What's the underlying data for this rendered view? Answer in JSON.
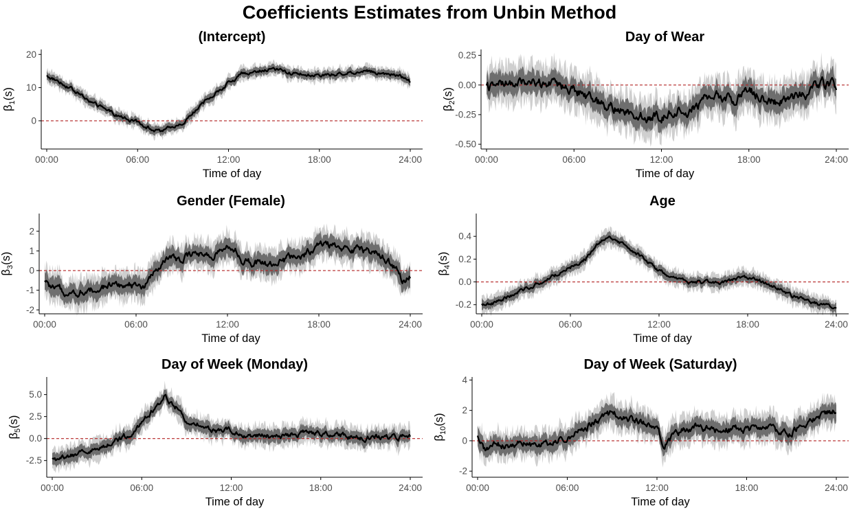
{
  "title": "Coefficients Estimates from Unbin Method",
  "colors": {
    "line": "#000000",
    "band_inner": "#6e6e6e",
    "band_outer": "#cfcfcf",
    "zero_line": "#b22222",
    "axis": "#000000"
  },
  "chart_data": [
    {
      "type": "line",
      "title": "(Intercept)",
      "ylabel": "β1(s)",
      "ylabel_base": "β",
      "ylabel_sub": "1",
      "ylabel_tail": "(s)",
      "xlabel": "Time of day",
      "x_ticks": [
        "00:00",
        "06:00",
        "12:00",
        "18:00",
        "24:00"
      ],
      "xlim": [
        0,
        24
      ],
      "y_ticks": [
        "0",
        "10",
        "20"
      ],
      "y_tick_values": [
        0,
        10,
        20
      ],
      "ylim": [
        -8.5,
        21.5
      ],
      "reference_line": 0,
      "noise": {
        "ci_inner": 1.2,
        "ci_outer": 2.0,
        "wiggle": 0.5
      },
      "series": [
        {
          "name": "",
          "x": [
            0,
            1,
            2,
            3,
            4,
            5,
            6,
            6.5,
            7,
            7.5,
            8,
            9,
            10,
            11,
            12,
            12.5,
            13,
            14,
            15,
            16,
            17,
            18,
            19,
            20,
            21,
            22,
            23,
            24
          ],
          "y": [
            13.5,
            11.5,
            8.5,
            5.5,
            3,
            1,
            -0.5,
            -1.5,
            -2.5,
            -3.5,
            -2.5,
            -0.5,
            4,
            8,
            11.5,
            12.5,
            14.5,
            15,
            15.5,
            14.5,
            14,
            13.5,
            14,
            14.5,
            15,
            14.5,
            14,
            12
          ]
        }
      ]
    },
    {
      "type": "line",
      "title": "Day of Wear",
      "ylabel": "β2(s)",
      "ylabel_base": "β",
      "ylabel_sub": "2",
      "ylabel_tail": "(s)",
      "xlabel": "Time of day",
      "x_ticks": [
        "00:00",
        "06:00",
        "12:00",
        "18:00",
        "24:00"
      ],
      "xlim": [
        0,
        24
      ],
      "y_ticks": [
        "-0.50",
        "-0.25",
        "0.00",
        "0.25"
      ],
      "y_tick_values": [
        -0.5,
        -0.25,
        0,
        0.25
      ],
      "ylim": [
        -0.54,
        0.3
      ],
      "reference_line": 0,
      "noise": {
        "ci_inner": 0.09,
        "ci_outer": 0.16,
        "wiggle": 0.04
      },
      "series": [
        {
          "name": "",
          "x": [
            0,
            1,
            2,
            3,
            4,
            5,
            6,
            7,
            8,
            9,
            10,
            11,
            12,
            13,
            14,
            15,
            16,
            17,
            18,
            19,
            20,
            21,
            22,
            23,
            24
          ],
          "y": [
            -0.02,
            0.0,
            0.02,
            0.03,
            0.01,
            -0.02,
            -0.04,
            -0.1,
            -0.18,
            -0.2,
            -0.22,
            -0.28,
            -0.27,
            -0.2,
            -0.22,
            -0.12,
            -0.1,
            -0.12,
            -0.05,
            -0.1,
            -0.15,
            -0.12,
            -0.08,
            0.03,
            -0.02
          ]
        }
      ]
    },
    {
      "type": "line",
      "title": "Gender (Female)",
      "ylabel": "β3(s)",
      "ylabel_base": "β",
      "ylabel_sub": "3",
      "ylabel_tail": "(s)",
      "xlabel": "Time of day",
      "x_ticks": [
        "00:00",
        "06:00",
        "12:00",
        "18:00",
        "24:00"
      ],
      "xlim": [
        0,
        24
      ],
      "y_ticks": [
        "-2",
        "-1",
        "0",
        "1",
        "2"
      ],
      "y_tick_values": [
        -2,
        -1,
        0,
        1,
        2
      ],
      "ylim": [
        -2.2,
        2.9
      ],
      "reference_line": 0,
      "noise": {
        "ci_inner": 0.45,
        "ci_outer": 0.75,
        "wiggle": 0.18
      },
      "series": [
        {
          "name": "",
          "x": [
            0,
            0.5,
            1,
            2,
            3,
            4,
            5,
            6,
            6.5,
            7,
            7.5,
            8,
            9,
            10,
            11,
            12,
            12.5,
            13,
            14,
            15,
            16,
            17,
            18,
            18.5,
            19,
            20,
            21,
            22,
            23,
            23.5,
            24
          ],
          "y": [
            -0.6,
            -0.9,
            -1.0,
            -1.1,
            -1.0,
            -0.8,
            -0.7,
            -0.8,
            -0.9,
            -0.4,
            0.2,
            0.6,
            0.6,
            0.8,
            0.8,
            1.1,
            1.0,
            0.4,
            0.4,
            0.3,
            0.6,
            0.8,
            1.2,
            1.4,
            1.2,
            1.1,
            1.0,
            0.8,
            0.2,
            -0.6,
            -0.4
          ]
        }
      ]
    },
    {
      "type": "line",
      "title": "Age",
      "ylabel": "β4(s)",
      "ylabel_base": "β",
      "ylabel_sub": "4",
      "ylabel_tail": "(s)",
      "xlabel": "Time of day",
      "x_ticks": [
        "00:00",
        "06:00",
        "12:00",
        "18:00",
        "24:00"
      ],
      "xlim": [
        0,
        24
      ],
      "y_ticks": [
        "-0.2",
        "0.0",
        "0.2",
        "0.4"
      ],
      "y_tick_values": [
        -0.2,
        0,
        0.2,
        0.4
      ],
      "ylim": [
        -0.28,
        0.6
      ],
      "reference_line": 0,
      "noise": {
        "ci_inner": 0.04,
        "ci_outer": 0.07,
        "wiggle": 0.015
      },
      "series": [
        {
          "name": "",
          "x": [
            0,
            1,
            2,
            3,
            4,
            5,
            6,
            7,
            8,
            8.5,
            9,
            10,
            11,
            12,
            13,
            14,
            15,
            16,
            17,
            18,
            19,
            20,
            21,
            22,
            23,
            24
          ],
          "y": [
            -0.2,
            -0.18,
            -0.12,
            -0.06,
            0.0,
            0.06,
            0.13,
            0.2,
            0.35,
            0.4,
            0.38,
            0.3,
            0.2,
            0.1,
            0.03,
            0.0,
            0.0,
            -0.01,
            0.02,
            0.04,
            0.0,
            -0.05,
            -0.12,
            -0.17,
            -0.2,
            -0.22
          ]
        }
      ]
    },
    {
      "type": "line",
      "title": "Day of Week (Monday)",
      "ylabel": "β5(s)",
      "ylabel_base": "β",
      "ylabel_sub": "5",
      "ylabel_tail": "(s)",
      "xlabel": "Time of day",
      "x_ticks": [
        "00:00",
        "06:00",
        "12:00",
        "18:00",
        "24:00"
      ],
      "xlim": [
        0,
        24
      ],
      "y_ticks": [
        "-2.5",
        "0.0",
        "2.5",
        "5.0"
      ],
      "y_tick_values": [
        -2.5,
        0,
        2.5,
        5
      ],
      "ylim": [
        -4.4,
        7.0
      ],
      "reference_line": 0,
      "noise": {
        "ci_inner": 0.7,
        "ci_outer": 1.2,
        "wiggle": 0.3
      },
      "series": [
        {
          "name": "",
          "x": [
            0,
            1,
            2,
            3,
            4,
            5,
            6,
            7,
            7.5,
            8,
            9,
            10,
            11,
            12,
            13,
            14,
            15,
            16,
            17,
            18,
            19,
            20,
            21,
            22,
            23,
            24
          ],
          "y": [
            -2.5,
            -2.2,
            -1.6,
            -1.0,
            -0.5,
            0.3,
            1.8,
            3.8,
            4.8,
            4.2,
            2.2,
            1.5,
            0.8,
            0.8,
            0.3,
            0.3,
            0.2,
            0.4,
            0.6,
            0.6,
            0.4,
            0.2,
            0.0,
            0.2,
            0.1,
            0.1
          ]
        }
      ]
    },
    {
      "type": "line",
      "title": "Day of Week (Saturday)",
      "ylabel": "β10(s)",
      "ylabel_base": "β",
      "ylabel_sub": "10",
      "ylabel_tail": "(s)",
      "xlabel": "Time of day",
      "x_ticks": [
        "00:00",
        "06:00",
        "12:00",
        "18:00",
        "24:00"
      ],
      "xlim": [
        0,
        24
      ],
      "y_ticks": [
        "-2",
        "0",
        "2",
        "4"
      ],
      "y_tick_values": [
        -2,
        0,
        2,
        4
      ],
      "ylim": [
        -2.4,
        4.2
      ],
      "reference_line": 0,
      "noise": {
        "ci_inner": 0.55,
        "ci_outer": 0.95,
        "wiggle": 0.22
      },
      "series": [
        {
          "name": "",
          "x": [
            0,
            0.5,
            1,
            2,
            3,
            4,
            5,
            6,
            7,
            8,
            9,
            10,
            11,
            12,
            12.5,
            13,
            14,
            15,
            16,
            17,
            18,
            19,
            20,
            21,
            22,
            23,
            24
          ],
          "y": [
            0.2,
            -0.6,
            -0.2,
            -0.3,
            -0.1,
            -0.3,
            -0.1,
            0.2,
            0.8,
            1.3,
            1.8,
            1.5,
            1.2,
            0.8,
            -0.3,
            0.3,
            0.8,
            0.9,
            0.7,
            0.8,
            0.7,
            0.9,
            0.6,
            0.5,
            1.2,
            1.6,
            2.0
          ]
        }
      ]
    }
  ]
}
